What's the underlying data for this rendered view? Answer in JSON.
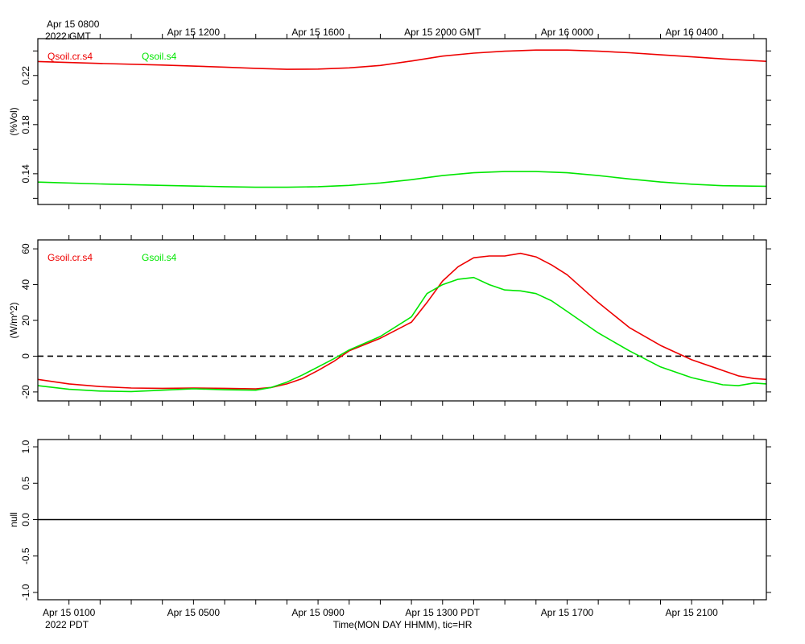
{
  "header": {
    "gmt_first_line1": "Apr 15 0800",
    "gmt_first_line2": "2022 GMT"
  },
  "footer": {
    "pdt_year": "2022 PDT",
    "xlabel": "Time(MON DAY HHMM), tic=HR"
  },
  "colors": {
    "red": "#ee0000",
    "green": "#00e600"
  },
  "x_axis": {
    "start_hour_pdt": 0,
    "end_hour_pdt": 23.4,
    "gmt_ticks": [
      {
        "hour": 5,
        "label": "Apr 15 1200"
      },
      {
        "hour": 9,
        "label": "Apr 15 1600"
      },
      {
        "hour": 13,
        "label": "Apr 15 2000 GMT"
      },
      {
        "hour": 17,
        "label": "Apr 16 0000"
      },
      {
        "hour": 21,
        "label": "Apr 16 0400"
      }
    ],
    "pdt_ticks": [
      {
        "hour": 1,
        "label": "Apr 15 0100"
      },
      {
        "hour": 5,
        "label": "Apr 15 0500"
      },
      {
        "hour": 9,
        "label": "Apr 15 0900"
      },
      {
        "hour": 13,
        "label": "Apr 15 1300 PDT"
      },
      {
        "hour": 17,
        "label": "Apr 15 1700"
      },
      {
        "hour": 21,
        "label": "Apr 15 2100"
      }
    ]
  },
  "chart_data": [
    {
      "type": "line",
      "ylabel": "(%Vol)",
      "ylim": [
        0.115,
        0.25
      ],
      "yticks": [
        0.14,
        0.18,
        0.22
      ],
      "ytick_labels": [
        "0.14",
        "0.18",
        "0.22"
      ],
      "minor_yticks": [
        0.12,
        0.16,
        0.2,
        0.24
      ],
      "series": [
        {
          "name": "Qsoil.cr.s4",
          "color": "#ee0000",
          "x": [
            0,
            2,
            4,
            6,
            7,
            8,
            9,
            10,
            11,
            12,
            13,
            14,
            15,
            16,
            17,
            18,
            19,
            20,
            21,
            22,
            23.4
          ],
          "y": [
            0.2314,
            0.2298,
            0.2285,
            0.2268,
            0.2258,
            0.225,
            0.2252,
            0.2262,
            0.2282,
            0.2318,
            0.2358,
            0.2382,
            0.2398,
            0.2407,
            0.2407,
            0.2398,
            0.2385,
            0.2368,
            0.2352,
            0.2335,
            0.2315
          ]
        },
        {
          "name": "Qsoil.s4",
          "color": "#00e600",
          "x": [
            0,
            2,
            4,
            6,
            7,
            8,
            9,
            10,
            11,
            12,
            13,
            14,
            15,
            16,
            17,
            18,
            19,
            20,
            21,
            22,
            23.4
          ],
          "y": [
            0.1332,
            0.1317,
            0.1305,
            0.1295,
            0.129,
            0.129,
            0.1295,
            0.1305,
            0.1325,
            0.1352,
            0.1385,
            0.1408,
            0.1418,
            0.1418,
            0.1408,
            0.1385,
            0.1358,
            0.1333,
            0.1315,
            0.1303,
            0.1298
          ]
        }
      ]
    },
    {
      "type": "line",
      "ylabel": "(W/m^2)",
      "ylim": [
        -25,
        65
      ],
      "yticks": [
        -20,
        0,
        20,
        40,
        60
      ],
      "ytick_labels": [
        "-20",
        "0",
        "20",
        "40",
        "60"
      ],
      "zero_line": true,
      "series": [
        {
          "name": "Gsoil.cr.s4",
          "color": "#ee0000",
          "x": [
            0,
            1,
            2,
            3,
            4,
            5,
            6,
            7,
            7.5,
            8,
            8.5,
            9,
            9.5,
            10,
            11,
            12,
            12.5,
            13,
            13.5,
            14,
            14.5,
            15,
            15.5,
            16,
            16.5,
            17,
            18,
            19,
            20,
            21,
            22,
            22.5,
            23,
            23.4
          ],
          "y": [
            -13,
            -15.5,
            -17,
            -17.8,
            -18,
            -17.8,
            -18,
            -18.3,
            -17.5,
            -15.5,
            -12.5,
            -8,
            -3,
            3,
            10,
            19,
            30,
            42,
            50,
            55,
            56,
            56,
            57.5,
            55.5,
            51,
            45.5,
            30,
            16,
            6,
            -2,
            -8,
            -11,
            -12.5,
            -13
          ]
        },
        {
          "name": "Gsoil.s4",
          "color": "#00e600",
          "x": [
            0,
            1,
            2,
            3,
            4,
            5,
            6,
            7,
            7.5,
            8,
            8.5,
            9,
            9.5,
            10,
            11,
            12,
            12.5,
            13,
            13.5,
            14,
            14.5,
            15,
            15.5,
            16,
            16.5,
            17,
            18,
            19,
            20,
            21,
            22,
            22.5,
            23,
            23.4
          ],
          "y": [
            -16.5,
            -18.5,
            -19.5,
            -19.8,
            -19,
            -18.2,
            -18.8,
            -19,
            -17.5,
            -14.5,
            -10.5,
            -6,
            -1.5,
            3.5,
            11,
            22,
            35,
            40,
            43,
            44,
            40,
            37,
            36.5,
            35,
            31,
            25,
            13,
            3,
            -6,
            -12,
            -16,
            -16.5,
            -15,
            -15.5
          ]
        }
      ]
    },
    {
      "type": "line",
      "ylabel": "null",
      "ylim": [
        -1.1,
        1.1
      ],
      "yticks": [
        -1,
        -0.5,
        0,
        0.5,
        1
      ],
      "ytick_labels": [
        "-1.0",
        "-0.5",
        "0.0",
        "0.5",
        "1.0"
      ],
      "zero_line": true,
      "series": []
    }
  ]
}
